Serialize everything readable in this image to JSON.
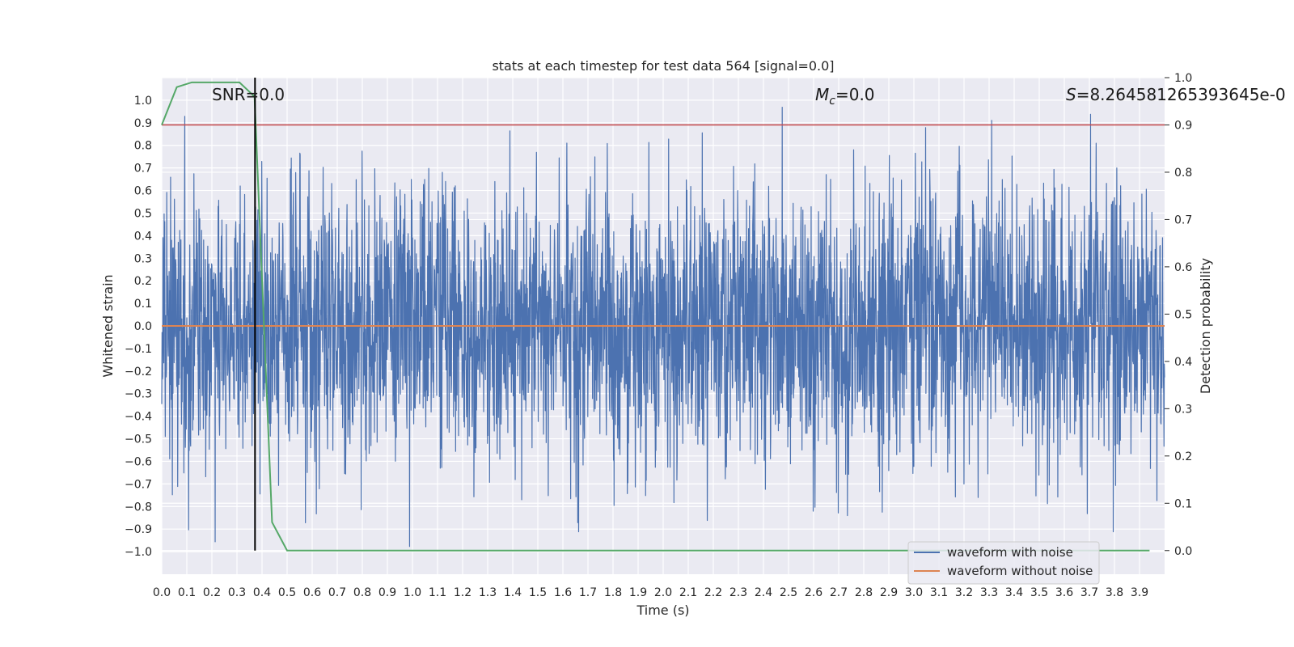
{
  "chart_data": {
    "type": "line",
    "title": "stats at each timestep for test data 564 [signal=0.0]",
    "xlabel": "Time (s)",
    "ylabel": "Whitened strain",
    "y2label": "Detection probability",
    "xlim": [
      0.0,
      4.0
    ],
    "ylim": [
      -1.1,
      1.1
    ],
    "y2lim": [
      -0.05,
      1.0
    ],
    "x_ticks": [
      "0.0",
      "0.1",
      "0.2",
      "0.3",
      "0.4",
      "0.5",
      "0.6",
      "0.7",
      "0.8",
      "0.9",
      "1.0",
      "1.1",
      "1.2",
      "1.3",
      "1.4",
      "1.5",
      "1.6",
      "1.7",
      "1.8",
      "1.9",
      "2.0",
      "2.1",
      "2.2",
      "2.3",
      "2.4",
      "2.5",
      "2.6",
      "2.7",
      "2.8",
      "2.9",
      "3.0",
      "3.1",
      "3.2",
      "3.3",
      "3.4",
      "3.5",
      "3.6",
      "3.7",
      "3.8",
      "3.9"
    ],
    "y_ticks": [
      "1.0",
      "0.9",
      "0.8",
      "0.7",
      "0.6",
      "0.5",
      "0.4",
      "0.3",
      "0.2",
      "0.1",
      "0.0",
      "−0.1",
      "−0.2",
      "−0.3",
      "−0.4",
      "−0.5",
      "−0.6",
      "−0.7",
      "−0.8",
      "−0.9",
      "−1.0"
    ],
    "y2_ticks": [
      "1.0",
      "0.9",
      "0.8",
      "0.7",
      "0.6",
      "0.5",
      "0.4",
      "0.3",
      "0.2",
      "0.1",
      "0.0"
    ],
    "annotations": {
      "snr": "SNR=0.0",
      "mc_symbol": "M",
      "mc_sub": "c",
      "mc_value": "=0.0",
      "s_symbol": "S",
      "s_value": "=8.264581265393645e-0"
    },
    "legend": {
      "position": "lower-right",
      "entries": [
        "waveform with noise",
        "waveform without noise"
      ]
    },
    "colors": {
      "noise": "#4c72b0",
      "clean": "#dd8452",
      "probability": "#55a868",
      "threshold": "#c44e52",
      "marker": "#000000",
      "axes_bg": "#eaeaf2",
      "grid": "#ffffff"
    },
    "series": [
      {
        "name": "waveform with noise",
        "axis": "left",
        "kind": "noise",
        "x_range": [
          0.0,
          4.0
        ],
        "amplitude_range": [
          -1.0,
          0.97
        ]
      },
      {
        "name": "waveform without noise",
        "axis": "left",
        "x": [
          0.0,
          4.0
        ],
        "values": [
          0.0,
          0.0
        ]
      },
      {
        "name": "detection probability",
        "axis": "right",
        "x": [
          0.0,
          0.06,
          0.12,
          0.19,
          0.25,
          0.31,
          0.37,
          0.44,
          0.5,
          0.56,
          1.0,
          2.0,
          3.0,
          3.94
        ],
        "values": [
          0.9,
          0.98,
          0.99,
          0.99,
          0.99,
          0.99,
          0.96,
          0.06,
          0.0,
          0.0,
          0.0,
          0.0,
          0.0,
          0.0
        ]
      },
      {
        "name": "threshold",
        "axis": "right",
        "x": [
          0.0,
          4.0
        ],
        "values": [
          0.9,
          0.9
        ]
      },
      {
        "name": "detection marker",
        "axis": "right",
        "x": [
          0.372,
          0.372
        ],
        "values": [
          0.0,
          1.0
        ]
      }
    ]
  }
}
